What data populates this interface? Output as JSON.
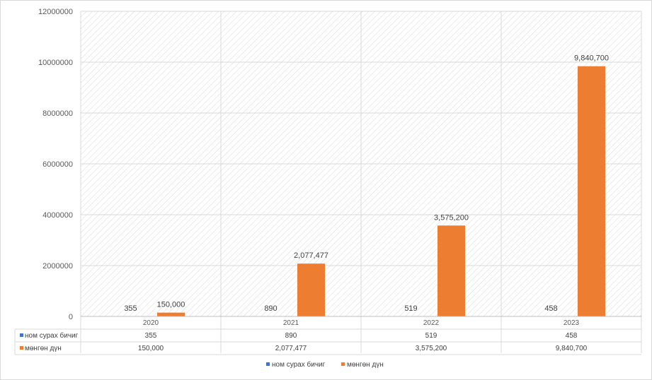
{
  "chart_data": {
    "type": "bar",
    "title": "",
    "xlabel": "",
    "ylabel": "",
    "categories": [
      "2020",
      "2021",
      "2022",
      "2023"
    ],
    "series": [
      {
        "name": "ном сурах бичиг",
        "values": [
          355,
          890,
          519,
          458
        ],
        "labels": [
          "355",
          "890",
          "519",
          "458"
        ],
        "color": "#4472C4"
      },
      {
        "name": "мөнгөн дүн",
        "values": [
          150000,
          2077477,
          3575200,
          9840700
        ],
        "labels": [
          "150,000",
          "2,077,477",
          "3,575,200",
          "9,840,700"
        ],
        "color": "#ED7D31"
      }
    ],
    "ylim": [
      0,
      12000000
    ],
    "yticks": [
      0,
      2000000,
      4000000,
      6000000,
      8000000,
      10000000,
      12000000
    ],
    "ytick_labels": [
      "0",
      "2000000",
      "4000000",
      "6000000",
      "8000000",
      "10000000",
      "12000000"
    ],
    "grid": true,
    "plot_pattern": "diagonal-hatch",
    "legend_position": "bottom",
    "data_table": true
  }
}
